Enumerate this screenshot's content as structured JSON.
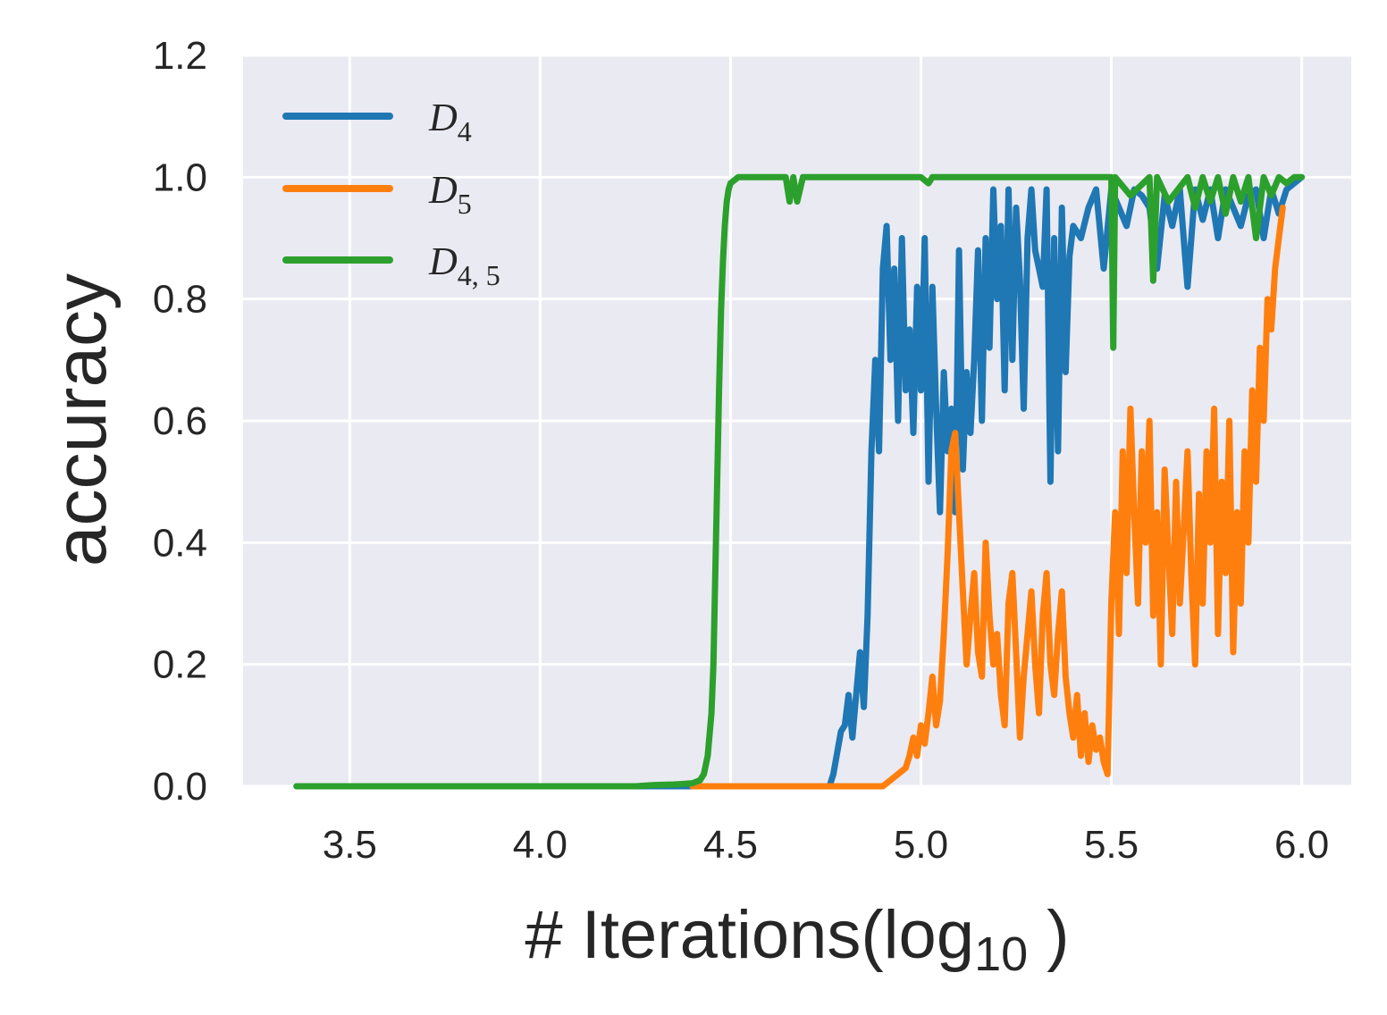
{
  "chart_data": {
    "type": "line",
    "xlabel": "# Iterations(log",
    "xlabel_sub": "10",
    "xlabel_tail": " )",
    "ylabel": "accuracy",
    "xlim": [
      3.22,
      6.13
    ],
    "ylim": [
      0,
      1.2
    ],
    "xticks": [
      3.5,
      4.0,
      4.5,
      5.0,
      5.5,
      6.0
    ],
    "xtick_labels": [
      "3.5",
      "4.0",
      "4.5",
      "5.0",
      "5.5",
      "6.0"
    ],
    "yticks": [
      0,
      0.2,
      0.4,
      0.6,
      0.8,
      1.0,
      1.2
    ],
    "ytick_labels": [
      "0.0",
      "0.2",
      "0.4",
      "0.6",
      "0.8",
      "1.0",
      "1.2"
    ],
    "grid": true,
    "legend_position": "top-left",
    "colors": {
      "background": "#eaeaf2",
      "grid": "#ffffff",
      "D4": "#1f77b4",
      "D5": "#ff7f0e",
      "D45": "#2ca02c"
    },
    "series": [
      {
        "name": "D",
        "subscript": "4",
        "color": "#1f77b4",
        "x": [
          3.38,
          4.6,
          4.66,
          4.67,
          4.76,
          4.77,
          4.79,
          4.8,
          4.81,
          4.82,
          4.83,
          4.84,
          4.85,
          4.86,
          4.87,
          4.88,
          4.89,
          4.9,
          4.91,
          4.92,
          4.93,
          4.94,
          4.95,
          4.96,
          4.97,
          4.98,
          4.99,
          5.0,
          5.01,
          5.02,
          5.03,
          5.04,
          5.05,
          5.06,
          5.07,
          5.08,
          5.09,
          5.1,
          5.11,
          5.12,
          5.13,
          5.14,
          5.15,
          5.16,
          5.17,
          5.18,
          5.19,
          5.2,
          5.21,
          5.22,
          5.23,
          5.24,
          5.25,
          5.26,
          5.27,
          5.28,
          5.29,
          5.3,
          5.31,
          5.32,
          5.33,
          5.34,
          5.35,
          5.36,
          5.37,
          5.38,
          5.39,
          5.4,
          5.42,
          5.44,
          5.46,
          5.48,
          5.5,
          5.52,
          5.54,
          5.56,
          5.58,
          5.6,
          5.62,
          5.64,
          5.66,
          5.68,
          5.7,
          5.72,
          5.74,
          5.76,
          5.78,
          5.8,
          5.82,
          5.84,
          5.86,
          5.88,
          5.9,
          5.92,
          5.94,
          5.96,
          5.98,
          6.0
        ],
        "y": [
          0.0,
          0.0,
          0.0,
          0.0,
          0.0,
          0.02,
          0.09,
          0.1,
          0.15,
          0.08,
          0.15,
          0.22,
          0.13,
          0.28,
          0.55,
          0.7,
          0.55,
          0.85,
          0.92,
          0.7,
          0.85,
          0.6,
          0.9,
          0.65,
          0.75,
          0.58,
          0.82,
          0.65,
          0.9,
          0.5,
          0.82,
          0.62,
          0.45,
          0.68,
          0.55,
          0.62,
          0.45,
          0.88,
          0.52,
          0.68,
          0.58,
          0.7,
          0.88,
          0.6,
          0.9,
          0.72,
          0.98,
          0.8,
          0.92,
          0.65,
          0.98,
          0.7,
          0.95,
          0.83,
          0.62,
          0.9,
          0.98,
          0.88,
          0.85,
          0.82,
          0.98,
          0.5,
          0.9,
          0.55,
          0.95,
          0.68,
          0.87,
          0.92,
          0.9,
          0.95,
          0.98,
          0.85,
          0.98,
          0.95,
          0.92,
          0.98,
          0.97,
          0.95,
          0.85,
          0.97,
          0.92,
          0.98,
          0.82,
          0.98,
          0.93,
          0.98,
          0.9,
          0.98,
          0.95,
          0.92,
          0.97,
          0.98,
          0.9,
          0.98,
          0.94,
          0.98,
          0.99,
          1.0
        ]
      },
      {
        "name": "D",
        "subscript": "5",
        "color": "#ff7f0e",
        "x": [
          4.4,
          4.9,
          4.92,
          4.94,
          4.96,
          4.97,
          4.98,
          4.99,
          5.0,
          5.01,
          5.02,
          5.03,
          5.04,
          5.05,
          5.06,
          5.07,
          5.08,
          5.09,
          5.1,
          5.11,
          5.12,
          5.13,
          5.14,
          5.15,
          5.16,
          5.17,
          5.18,
          5.19,
          5.2,
          5.21,
          5.22,
          5.23,
          5.24,
          5.25,
          5.26,
          5.27,
          5.28,
          5.29,
          5.3,
          5.31,
          5.32,
          5.33,
          5.34,
          5.35,
          5.36,
          5.37,
          5.38,
          5.39,
          5.4,
          5.41,
          5.42,
          5.43,
          5.44,
          5.45,
          5.46,
          5.47,
          5.48,
          5.49,
          5.5,
          5.51,
          5.52,
          5.53,
          5.54,
          5.55,
          5.56,
          5.57,
          5.58,
          5.59,
          5.6,
          5.61,
          5.62,
          5.63,
          5.64,
          5.65,
          5.66,
          5.67,
          5.68,
          5.69,
          5.7,
          5.71,
          5.72,
          5.73,
          5.74,
          5.75,
          5.76,
          5.77,
          5.78,
          5.79,
          5.8,
          5.81,
          5.82,
          5.83,
          5.84,
          5.85,
          5.86,
          5.87,
          5.88,
          5.89,
          5.9,
          5.91,
          5.92,
          5.93,
          5.94,
          5.95
        ],
        "y": [
          0.0,
          0.0,
          0.01,
          0.02,
          0.03,
          0.05,
          0.08,
          0.05,
          0.1,
          0.07,
          0.12,
          0.18,
          0.1,
          0.14,
          0.25,
          0.38,
          0.55,
          0.58,
          0.45,
          0.32,
          0.2,
          0.28,
          0.35,
          0.22,
          0.18,
          0.4,
          0.28,
          0.2,
          0.25,
          0.15,
          0.1,
          0.3,
          0.35,
          0.22,
          0.08,
          0.18,
          0.25,
          0.32,
          0.2,
          0.12,
          0.28,
          0.35,
          0.2,
          0.15,
          0.25,
          0.32,
          0.18,
          0.12,
          0.08,
          0.15,
          0.05,
          0.12,
          0.04,
          0.1,
          0.06,
          0.08,
          0.04,
          0.02,
          0.3,
          0.45,
          0.25,
          0.55,
          0.35,
          0.62,
          0.45,
          0.3,
          0.55,
          0.4,
          0.6,
          0.28,
          0.45,
          0.2,
          0.52,
          0.38,
          0.25,
          0.5,
          0.3,
          0.42,
          0.55,
          0.35,
          0.2,
          0.48,
          0.3,
          0.55,
          0.4,
          0.62,
          0.25,
          0.5,
          0.35,
          0.6,
          0.22,
          0.45,
          0.3,
          0.55,
          0.4,
          0.65,
          0.5,
          0.72,
          0.6,
          0.8,
          0.75,
          0.85,
          0.9,
          0.95
        ]
      },
      {
        "name": "D",
        "subscript": "4, 5",
        "color": "#2ca02c",
        "x": [
          3.36,
          4.0,
          4.25,
          4.3,
          4.35,
          4.38,
          4.4,
          4.42,
          4.43,
          4.44,
          4.45,
          4.455,
          4.46,
          4.465,
          4.47,
          4.475,
          4.48,
          4.485,
          4.49,
          4.495,
          4.5,
          4.52,
          4.55,
          4.6,
          4.645,
          4.655,
          4.665,
          4.675,
          4.69,
          5.0,
          5.02,
          5.03,
          5.3,
          5.5,
          5.505,
          5.51,
          5.55,
          5.6,
          5.61,
          5.62,
          5.65,
          5.7,
          5.72,
          5.74,
          5.76,
          5.78,
          5.8,
          5.82,
          5.84,
          5.86,
          5.88,
          5.9,
          5.92,
          5.94,
          5.96,
          5.98,
          6.0
        ],
        "y": [
          0.0,
          0.0,
          0.0,
          0.002,
          0.003,
          0.004,
          0.005,
          0.01,
          0.02,
          0.05,
          0.12,
          0.2,
          0.35,
          0.5,
          0.65,
          0.78,
          0.86,
          0.92,
          0.96,
          0.98,
          0.99,
          1.0,
          1.0,
          1.0,
          1.0,
          0.96,
          1.0,
          0.96,
          1.0,
          1.0,
          0.99,
          1.0,
          1.0,
          1.0,
          0.72,
          1.0,
          0.97,
          1.0,
          0.83,
          1.0,
          0.96,
          1.0,
          0.95,
          1.0,
          0.96,
          1.0,
          0.94,
          1.0,
          0.96,
          1.0,
          0.9,
          1.0,
          0.97,
          1.0,
          0.99,
          1.0,
          1.0
        ]
      }
    ]
  }
}
